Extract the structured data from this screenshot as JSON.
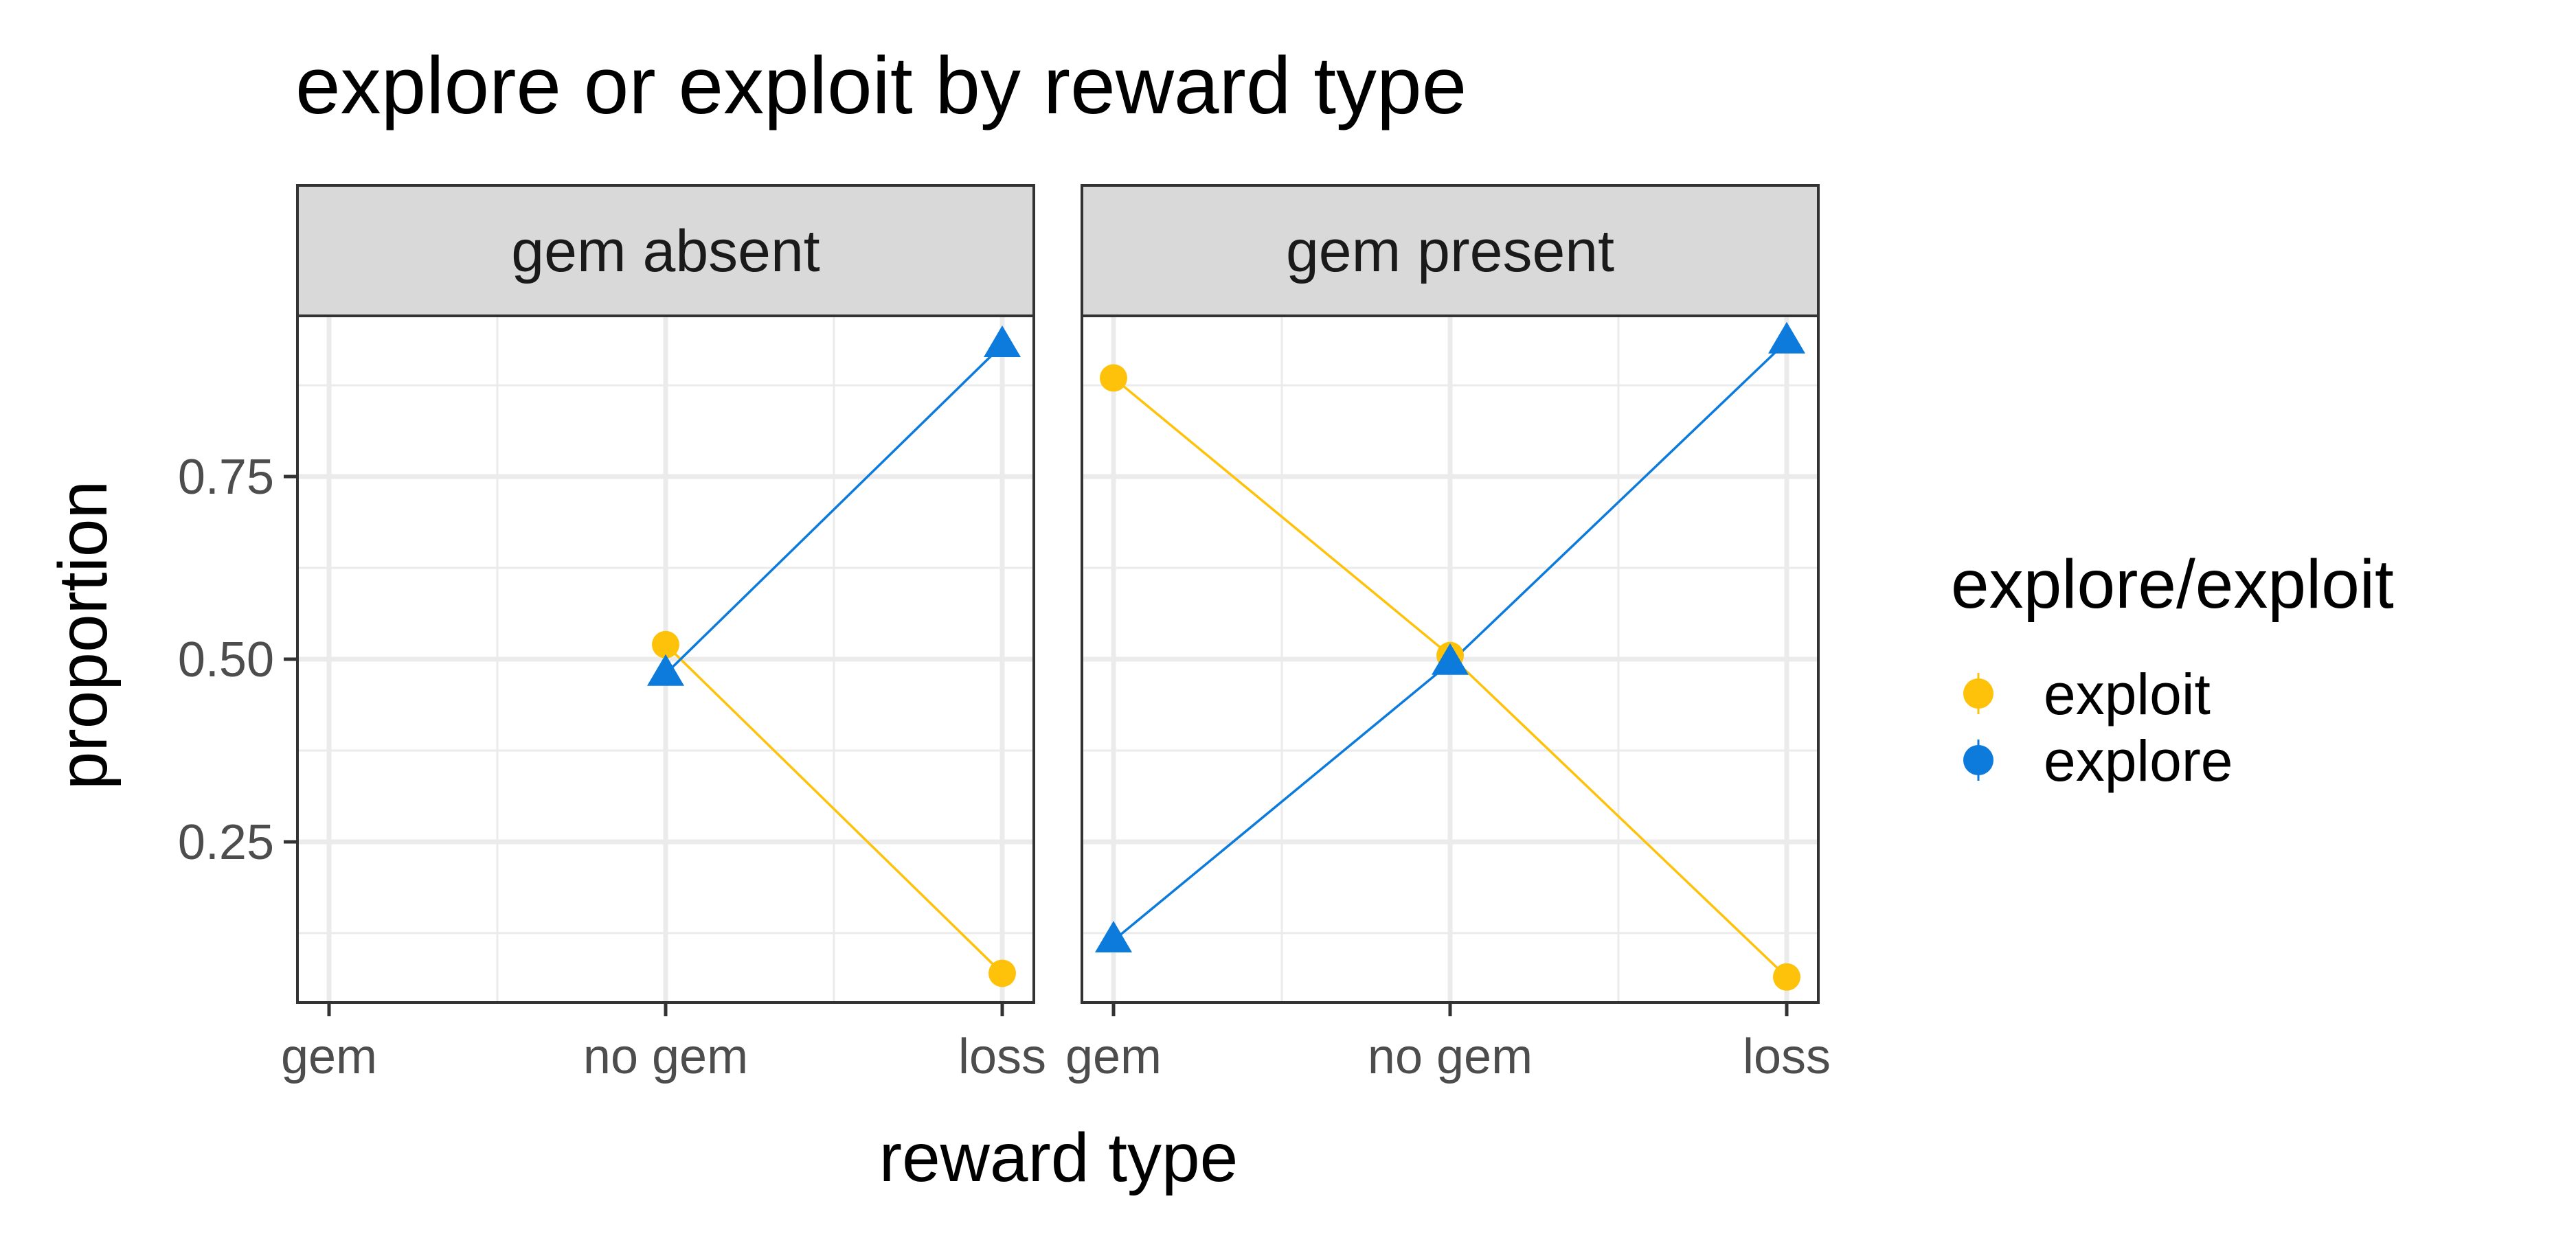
{
  "chart_data": {
    "type": "line",
    "title": "explore or exploit by reward type",
    "xlabel": "reward type",
    "ylabel": "proportion",
    "categories": [
      "gem",
      "no gem",
      "loss"
    ],
    "yticks": [
      0.25,
      0.5,
      0.75
    ],
    "ytick_labels": [
      "0.25",
      "0.50",
      "0.75"
    ],
    "ylim": [
      0.03,
      0.97
    ],
    "grid": true,
    "legend": {
      "title": "explore/exploit",
      "position": "right",
      "entries": [
        "exploit",
        "explore"
      ]
    },
    "colors": {
      "exploit": "#FFC20A",
      "explore": "#0C7BDC"
    },
    "panels": [
      {
        "label": "gem absent",
        "series": [
          {
            "name": "exploit",
            "shape": "circle",
            "x": [
              "no gem",
              "loss"
            ],
            "values": [
              0.52,
              0.07
            ]
          },
          {
            "name": "explore",
            "shape": "triangle",
            "x": [
              "no gem",
              "loss"
            ],
            "values": [
              0.48,
              0.93
            ]
          }
        ]
      },
      {
        "label": "gem present",
        "series": [
          {
            "name": "exploit",
            "shape": "circle",
            "x": [
              "gem",
              "no gem",
              "loss"
            ],
            "values": [
              0.885,
              0.505,
              0.065
            ]
          },
          {
            "name": "explore",
            "shape": "triangle",
            "x": [
              "gem",
              "no gem",
              "loss"
            ],
            "values": [
              0.115,
              0.495,
              0.935
            ]
          }
        ]
      }
    ]
  }
}
